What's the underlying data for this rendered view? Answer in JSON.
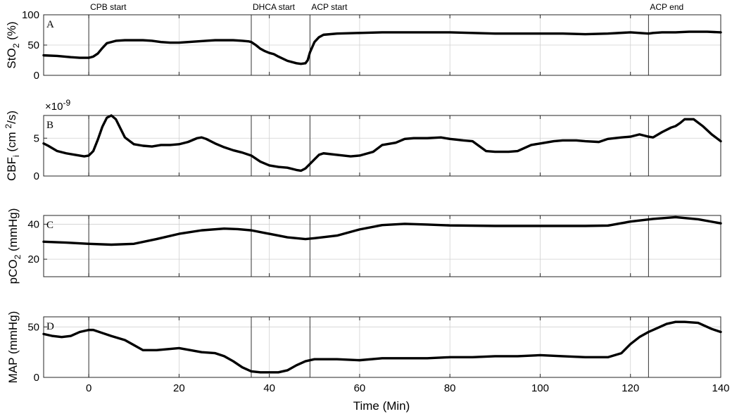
{
  "chart_data": [
    {
      "type": "line",
      "panel_letter": "A",
      "ylabel": "StO",
      "ylabel_sub": "2",
      "ylabel_suffix": " (%)",
      "xlim": [
        -10,
        140
      ],
      "ylim": [
        0,
        100
      ],
      "yticks": [
        0,
        50,
        100
      ],
      "grid": true,
      "series": [
        {
          "x": [
            -10,
            -7,
            -4,
            -2,
            0,
            1,
            2,
            3,
            4,
            6,
            8,
            10,
            12,
            14,
            16,
            18,
            20,
            22,
            24,
            26,
            28,
            30,
            32,
            34,
            35.5,
            36,
            37,
            38,
            39,
            40,
            41,
            42,
            44,
            46,
            47,
            48,
            48.5,
            49,
            50,
            51,
            52,
            55,
            60,
            65,
            70,
            75,
            80,
            85,
            90,
            95,
            100,
            105,
            110,
            115,
            120,
            122,
            124,
            125,
            127,
            130,
            133,
            137,
            140
          ],
          "y": [
            33,
            32,
            30,
            29,
            29,
            31,
            36,
            45,
            53,
            57,
            58,
            58,
            58,
            57,
            55,
            54,
            54,
            55,
            56,
            57,
            58,
            58,
            58,
            57,
            56,
            55,
            50,
            44,
            40,
            37,
            35,
            31,
            24,
            20,
            19,
            20,
            25,
            38,
            55,
            63,
            67,
            69,
            70,
            71,
            71,
            71,
            71,
            70,
            69,
            69,
            69,
            69,
            68,
            69,
            71,
            70,
            69,
            70,
            71,
            71,
            72,
            72,
            71
          ]
        }
      ]
    },
    {
      "type": "line",
      "panel_letter": "B",
      "ylabel": "CBF",
      "ylabel_sub": "i",
      "ylabel_mid": " (cm ",
      "ylabel_sup": "2",
      "ylabel_suffix": "/s)",
      "scale_note": "×10",
      "scale_exp": "-9",
      "xlim": [
        -10,
        140
      ],
      "ylim": [
        0,
        8
      ],
      "yticks": [
        0,
        5
      ],
      "grid": true,
      "series": [
        {
          "x": [
            -10,
            -9,
            -7,
            -5,
            -3,
            -1,
            0,
            1,
            2,
            3,
            4,
            5,
            6,
            7,
            8,
            10,
            12,
            14,
            16,
            18,
            20,
            22,
            24,
            25,
            26,
            28,
            30,
            32,
            34,
            36,
            38,
            40,
            42,
            44,
            46,
            47,
            48,
            49,
            50,
            51,
            52,
            55,
            58,
            60,
            63,
            65,
            68,
            70,
            72,
            75,
            78,
            80,
            83,
            85,
            88,
            90,
            93,
            95,
            98,
            100,
            103,
            105,
            108,
            110,
            113,
            115,
            118,
            120,
            122,
            124,
            125,
            127,
            129,
            130,
            131,
            132,
            134,
            136,
            138,
            140
          ],
          "y": [
            4.3,
            4.0,
            3.3,
            3.0,
            2.8,
            2.6,
            2.7,
            3.3,
            4.8,
            6.5,
            7.7,
            8.0,
            7.5,
            6.3,
            5.1,
            4.2,
            4.0,
            3.9,
            4.1,
            4.1,
            4.2,
            4.5,
            5.0,
            5.1,
            4.9,
            4.3,
            3.8,
            3.4,
            3.1,
            2.7,
            1.9,
            1.4,
            1.2,
            1.1,
            0.8,
            0.7,
            1.0,
            1.6,
            2.2,
            2.8,
            3.0,
            2.8,
            2.6,
            2.7,
            3.2,
            4.1,
            4.4,
            4.9,
            5.0,
            5.0,
            5.1,
            4.9,
            4.7,
            4.6,
            3.3,
            3.2,
            3.2,
            3.3,
            4.1,
            4.3,
            4.6,
            4.7,
            4.7,
            4.6,
            4.5,
            4.9,
            5.1,
            5.2,
            5.5,
            5.2,
            5.1,
            5.8,
            6.4,
            6.6,
            7.0,
            7.5,
            7.5,
            6.6,
            5.5,
            4.6
          ]
        }
      ]
    },
    {
      "type": "line",
      "panel_letter": "C",
      "ylabel": "pCO",
      "ylabel_sub": "2",
      "ylabel_suffix": " (mmHg)",
      "xlim": [
        -10,
        140
      ],
      "ylim": [
        10,
        45
      ],
      "yticks": [
        20,
        40
      ],
      "grid": true,
      "series": [
        {
          "x": [
            -10,
            -5,
            0,
            5,
            10,
            15,
            20,
            25,
            30,
            33,
            36,
            40,
            44,
            48,
            50,
            55,
            60,
            65,
            70,
            75,
            80,
            90,
            100,
            110,
            115,
            120,
            125,
            130,
            135,
            140
          ],
          "y": [
            30,
            29.5,
            28.8,
            28.3,
            28.8,
            31.5,
            34.5,
            36.5,
            37.5,
            37.2,
            36.5,
            34.5,
            32.5,
            31.5,
            32,
            33.5,
            37,
            39.5,
            40.2,
            39.8,
            39.3,
            39,
            39,
            39,
            39.2,
            41.5,
            43,
            44,
            42.8,
            40.5
          ]
        }
      ]
    },
    {
      "type": "line",
      "panel_letter": "D",
      "ylabel": "MAP (mmHg)",
      "xlabel": "Time (Min)",
      "xlim": [
        -10,
        140
      ],
      "xticks": [
        0,
        20,
        40,
        60,
        80,
        100,
        120,
        140
      ],
      "ylim": [
        0,
        60
      ],
      "yticks": [
        0,
        50
      ],
      "grid": true,
      "series": [
        {
          "x": [
            -10,
            -8,
            -6,
            -4,
            -2,
            0,
            1,
            3,
            5,
            8,
            10,
            12,
            15,
            20,
            25,
            28,
            30,
            32,
            34,
            36,
            38,
            40,
            42,
            44,
            46,
            48,
            50,
            55,
            60,
            65,
            70,
            75,
            80,
            85,
            90,
            95,
            100,
            105,
            110,
            115,
            118,
            120,
            122,
            124,
            126,
            128,
            130,
            132,
            135,
            138,
            140
          ],
          "y": [
            43,
            41,
            40,
            41,
            45,
            47,
            47,
            44,
            41,
            37,
            32,
            27,
            27,
            29,
            25,
            24,
            21,
            16,
            10,
            6,
            5,
            5,
            5,
            7,
            12,
            16,
            18,
            18,
            17,
            19,
            19,
            19,
            20,
            20,
            21,
            21,
            22,
            21,
            20,
            20,
            24,
            33,
            40,
            45,
            49,
            53,
            55,
            55,
            54,
            48,
            45
          ]
        }
      ]
    }
  ],
  "events": [
    {
      "label": "CPB start",
      "x": 0
    },
    {
      "label": "DHCA start",
      "x": 36
    },
    {
      "label": "ACP start",
      "x": 49
    },
    {
      "label": "ACP end",
      "x": 124
    }
  ]
}
